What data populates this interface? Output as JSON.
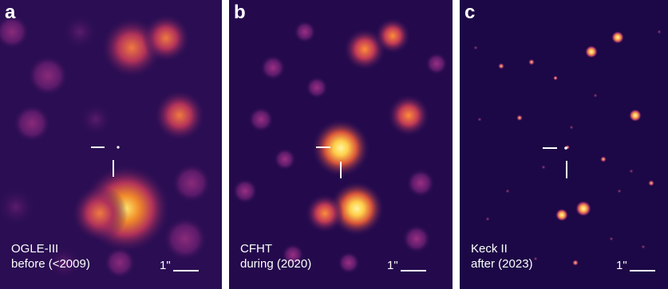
{
  "panels": [
    {
      "letter": "a",
      "caption_line1": "OGLE-III",
      "caption_line2": "before (<2009)",
      "scale_label": "1\""
    },
    {
      "letter": "b",
      "caption_line1": "CFHT",
      "caption_line2": "during (2020)",
      "scale_label": "1\""
    },
    {
      "letter": "c",
      "caption_line1": "Keck II",
      "caption_line2": "after (2023)",
      "scale_label": "1\""
    }
  ],
  "colors": {
    "background": "#1f0a4a",
    "star_core": "#ffe66b",
    "star_mid": "#e05a3a",
    "star_glow": "#7a1f7a",
    "marker": "#ffffff"
  }
}
